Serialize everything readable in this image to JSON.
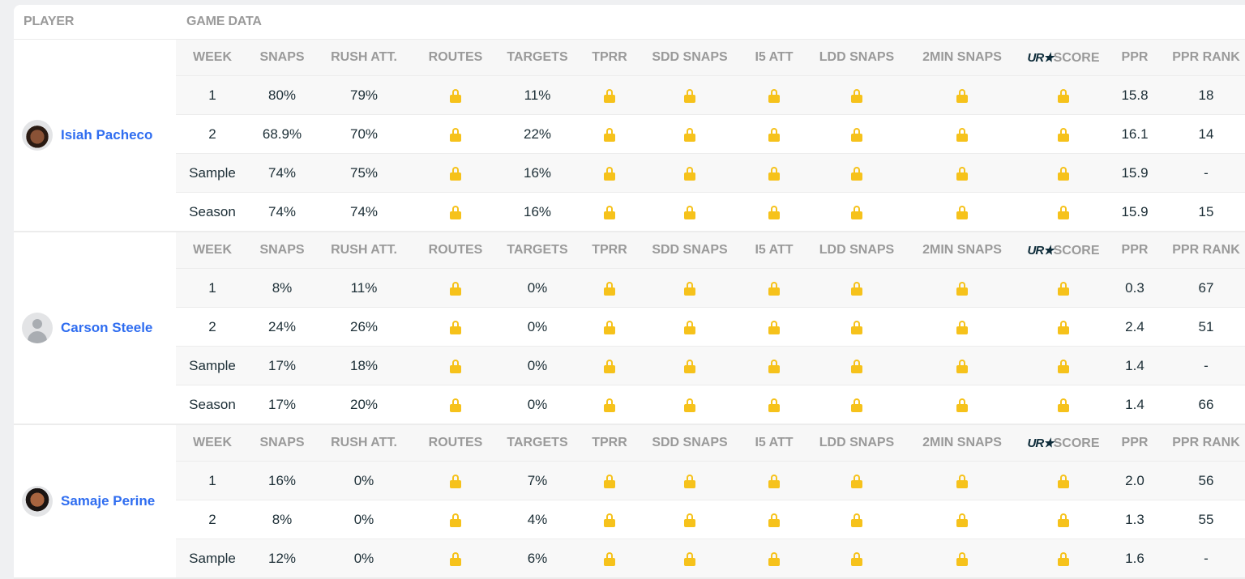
{
  "header": {
    "player": "PLAYER",
    "game_data": "GAME DATA"
  },
  "columns": [
    "WEEK",
    "SNAPS",
    "RUSH ATT.",
    "ROUTES",
    "TARGETS",
    "TPRR",
    "SDD SNAPS",
    "I5 ATT",
    "LDD SNAPS",
    "2MIN SNAPS",
    "SCORE",
    "PPR",
    "PPR RANK"
  ],
  "score_logo": "UR★",
  "lock_icon": "lock-icon",
  "lock_color": "#f6c21b",
  "link_color": "#2f6df0",
  "players": [
    {
      "name": "Isiah Pacheco",
      "avatar": "photo1",
      "rows": [
        [
          "1",
          "80%",
          "79%",
          "L",
          "11%",
          "L",
          "L",
          "L",
          "L",
          "L",
          "L",
          "15.8",
          "18"
        ],
        [
          "2",
          "68.9%",
          "70%",
          "L",
          "22%",
          "L",
          "L",
          "L",
          "L",
          "L",
          "L",
          "16.1",
          "14"
        ],
        [
          "Sample",
          "74%",
          "75%",
          "L",
          "16%",
          "L",
          "L",
          "L",
          "L",
          "L",
          "L",
          "15.9",
          "-"
        ],
        [
          "Season",
          "74%",
          "74%",
          "L",
          "16%",
          "L",
          "L",
          "L",
          "L",
          "L",
          "L",
          "15.9",
          "15"
        ]
      ]
    },
    {
      "name": "Carson Steele",
      "avatar": "generic",
      "rows": [
        [
          "1",
          "8%",
          "11%",
          "L",
          "0%",
          "L",
          "L",
          "L",
          "L",
          "L",
          "L",
          "0.3",
          "67"
        ],
        [
          "2",
          "24%",
          "26%",
          "L",
          "0%",
          "L",
          "L",
          "L",
          "L",
          "L",
          "L",
          "2.4",
          "51"
        ],
        [
          "Sample",
          "17%",
          "18%",
          "L",
          "0%",
          "L",
          "L",
          "L",
          "L",
          "L",
          "L",
          "1.4",
          "-"
        ],
        [
          "Season",
          "17%",
          "20%",
          "L",
          "0%",
          "L",
          "L",
          "L",
          "L",
          "L",
          "L",
          "1.4",
          "66"
        ]
      ]
    },
    {
      "name": "Samaje Perine",
      "avatar": "photo2",
      "rows": [
        [
          "1",
          "16%",
          "0%",
          "L",
          "7%",
          "L",
          "L",
          "L",
          "L",
          "L",
          "L",
          "2.0",
          "56"
        ],
        [
          "2",
          "8%",
          "0%",
          "L",
          "4%",
          "L",
          "L",
          "L",
          "L",
          "L",
          "L",
          "1.3",
          "55"
        ],
        [
          "Sample",
          "12%",
          "0%",
          "L",
          "6%",
          "L",
          "L",
          "L",
          "L",
          "L",
          "L",
          "1.6",
          "-"
        ]
      ]
    }
  ]
}
